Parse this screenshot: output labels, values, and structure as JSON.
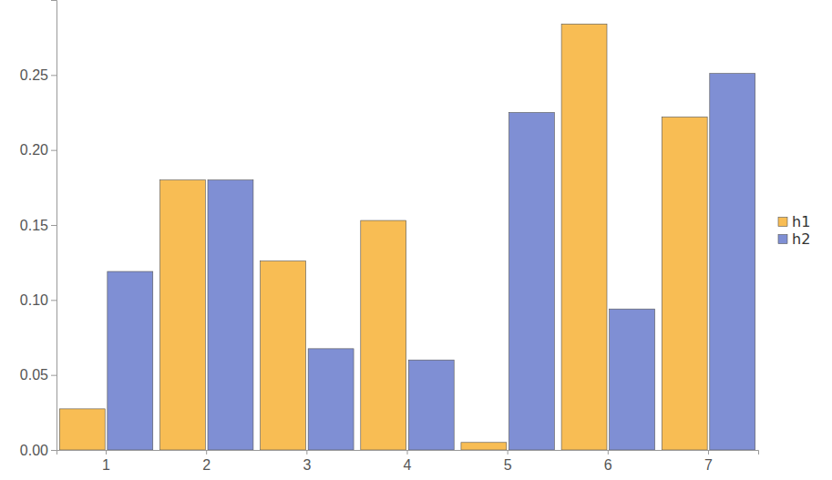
{
  "chart_data": {
    "type": "bar",
    "categories": [
      "1",
      "2",
      "3",
      "4",
      "5",
      "6",
      "7"
    ],
    "series": [
      {
        "name": "h1",
        "color": "#f8bd54",
        "values": [
          0.0274,
          0.18,
          0.126,
          0.153,
          0.005,
          0.284,
          0.222
        ]
      },
      {
        "name": "h2",
        "color": "#7f8fd4",
        "values": [
          0.119,
          0.18,
          0.0675,
          0.06,
          0.225,
          0.094,
          0.251
        ]
      }
    ],
    "ylim": [
      0,
      0.3
    ],
    "yticks": [
      {
        "value": 0,
        "label": "0.00"
      },
      {
        "value": 0.05,
        "label": "0.05"
      },
      {
        "value": 0.1,
        "label": "0.10"
      },
      {
        "value": 0.15,
        "label": "0.15"
      },
      {
        "value": 0.2,
        "label": "0.20"
      },
      {
        "value": 0.25,
        "label": "0.25"
      }
    ],
    "legend": "right"
  }
}
